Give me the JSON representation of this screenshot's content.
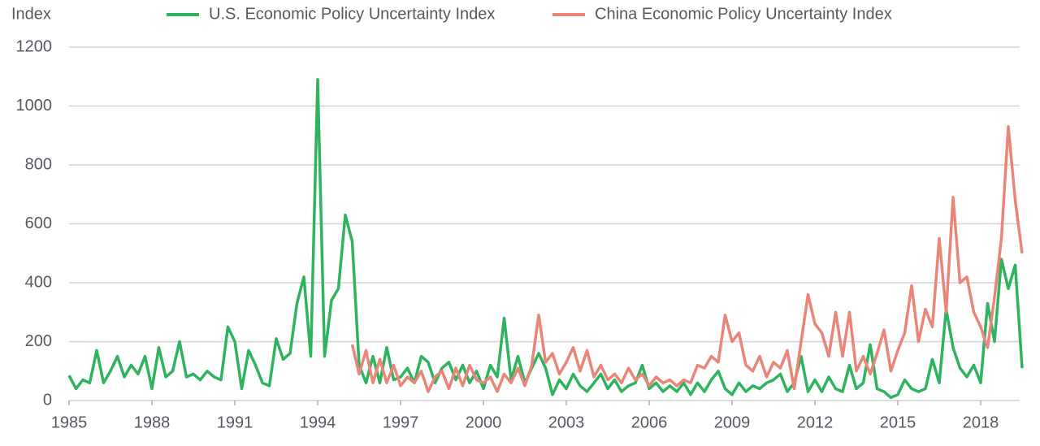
{
  "chart_data": {
    "type": "line",
    "y_label": "Index",
    "x": [
      1985,
      1985.25,
      1985.5,
      1985.75,
      1986,
      1986.25,
      1986.5,
      1986.75,
      1987,
      1987.25,
      1987.5,
      1987.75,
      1988,
      1988.25,
      1988.5,
      1988.75,
      1989,
      1989.25,
      1989.5,
      1989.75,
      1990,
      1990.25,
      1990.5,
      1990.75,
      1991,
      1991.25,
      1991.5,
      1991.75,
      1992,
      1992.25,
      1992.5,
      1992.75,
      1993,
      1993.25,
      1993.5,
      1993.75,
      1994,
      1994.25,
      1994.5,
      1994.75,
      1995,
      1995.25,
      1995.5,
      1995.75,
      1996,
      1996.25,
      1996.5,
      1996.75,
      1997,
      1997.25,
      1997.5,
      1997.75,
      1998,
      1998.25,
      1998.5,
      1998.75,
      1999,
      1999.25,
      1999.5,
      1999.75,
      2000,
      2000.25,
      2000.5,
      2000.75,
      2001,
      2001.25,
      2001.5,
      2001.75,
      2002,
      2002.25,
      2002.5,
      2002.75,
      2003,
      2003.25,
      2003.5,
      2003.75,
      2004,
      2004.25,
      2004.5,
      2004.75,
      2005,
      2005.25,
      2005.5,
      2005.75,
      2006,
      2006.25,
      2006.5,
      2006.75,
      2007,
      2007.25,
      2007.5,
      2007.75,
      2008,
      2008.25,
      2008.5,
      2008.75,
      2009,
      2009.25,
      2009.5,
      2009.75,
      2010,
      2010.25,
      2010.5,
      2010.75,
      2011,
      2011.25,
      2011.5,
      2011.75,
      2012,
      2012.25,
      2012.5,
      2012.75,
      2013,
      2013.25,
      2013.5,
      2013.75,
      2014,
      2014.25,
      2014.5,
      2014.75,
      2015,
      2015.25,
      2015.5,
      2015.75,
      2016,
      2016.25,
      2016.5,
      2016.75,
      2017,
      2017.25,
      2017.5,
      2017.75,
      2018,
      2018.25,
      2018.5,
      2018.75,
      2019,
      2019.25,
      2019.5
    ],
    "series": [
      {
        "name": "U.S. Economic Policy Uncertainty Index",
        "color": "#2fb35f",
        "values": [
          85,
          40,
          70,
          60,
          170,
          60,
          100,
          150,
          80,
          120,
          90,
          150,
          40,
          180,
          80,
          100,
          200,
          80,
          90,
          70,
          100,
          80,
          70,
          250,
          200,
          40,
          170,
          120,
          60,
          50,
          210,
          140,
          160,
          330,
          420,
          150,
          1090,
          150,
          340,
          380,
          630,
          540,
          120,
          60,
          150,
          60,
          180,
          70,
          80,
          110,
          60,
          150,
          130,
          60,
          110,
          130,
          70,
          120,
          60,
          100,
          40,
          120,
          80,
          280,
          70,
          150,
          60,
          110,
          160,
          110,
          20,
          70,
          40,
          90,
          50,
          30,
          60,
          90,
          40,
          70,
          30,
          50,
          60,
          120,
          40,
          60,
          30,
          50,
          30,
          60,
          20,
          60,
          30,
          70,
          100,
          40,
          20,
          60,
          30,
          50,
          40,
          60,
          70,
          90,
          30,
          60,
          150,
          30,
          70,
          30,
          80,
          40,
          30,
          120,
          40,
          60,
          190,
          40,
          30,
          10,
          20,
          70,
          40,
          30,
          40,
          140,
          60,
          310,
          180,
          110,
          80,
          120,
          60,
          330,
          200,
          480,
          380,
          460,
          110
        ]
      },
      {
        "name": "China Economic Policy Uncertainty Index",
        "color": "#ea8679",
        "values": [
          null,
          null,
          null,
          null,
          null,
          null,
          null,
          null,
          null,
          null,
          null,
          null,
          null,
          null,
          null,
          null,
          null,
          null,
          null,
          null,
          null,
          null,
          null,
          null,
          null,
          null,
          null,
          null,
          null,
          null,
          null,
          null,
          null,
          null,
          null,
          null,
          null,
          null,
          null,
          null,
          null,
          190,
          90,
          170,
          60,
          140,
          60,
          120,
          50,
          80,
          60,
          100,
          30,
          80,
          100,
          40,
          110,
          50,
          120,
          70,
          60,
          80,
          30,
          90,
          60,
          110,
          50,
          120,
          290,
          130,
          160,
          90,
          130,
          180,
          100,
          170,
          80,
          120,
          70,
          90,
          60,
          110,
          70,
          90,
          50,
          80,
          60,
          70,
          50,
          70,
          60,
          120,
          110,
          150,
          130,
          290,
          200,
          230,
          120,
          100,
          150,
          80,
          130,
          110,
          170,
          40,
          200,
          360,
          260,
          230,
          150,
          300,
          150,
          300,
          100,
          150,
          90,
          160,
          240,
          100,
          170,
          230,
          390,
          200,
          310,
          250,
          550,
          300,
          690,
          400,
          420,
          300,
          250,
          180,
          350,
          550,
          930,
          680,
          500
        ]
      }
    ],
    "xlim": [
      1985,
      2019.5
    ],
    "xticks": [
      1985,
      1988,
      1991,
      1994,
      1997,
      2000,
      2003,
      2006,
      2009,
      2012,
      2015,
      2018
    ],
    "ylim": [
      0,
      1200
    ],
    "yticks": [
      0,
      200,
      400,
      600,
      800,
      1000,
      1200
    ],
    "grid": true
  }
}
